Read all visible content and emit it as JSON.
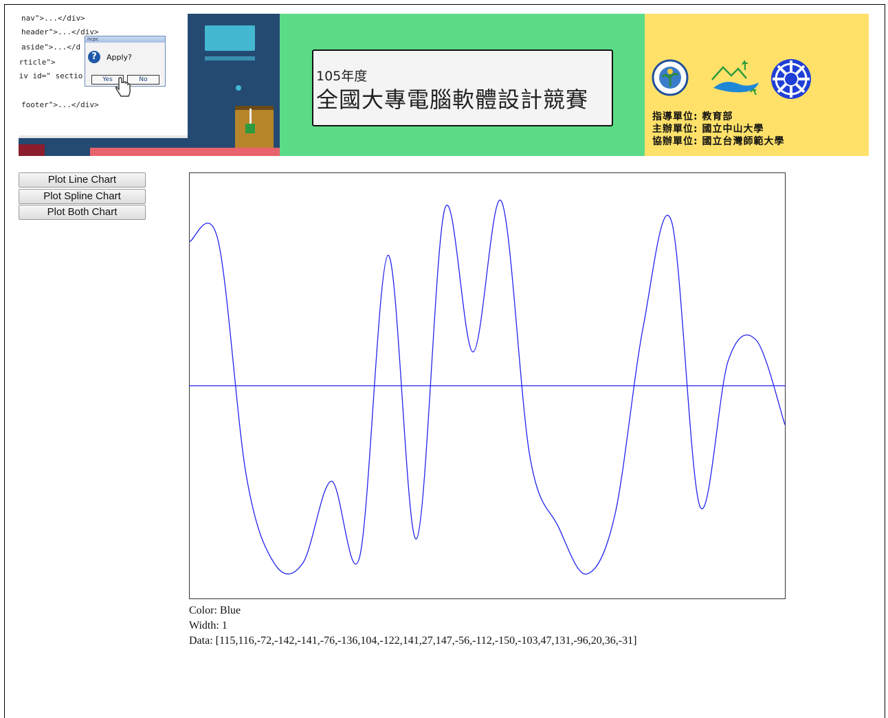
{
  "banner": {
    "code_lines": [
      "nav\">...</div>",
      "header\">...</div>",
      "aside\">...</d",
      "article\">",
      "div id=\" sectio",
      "footer\">...</div>"
    ],
    "dialog": {
      "title": "ncpc",
      "message": "Apply?",
      "yes_label": "Yes",
      "no_label": "No"
    },
    "title_year": "105年度",
    "title_main": "全國大專電腦軟體設計競賽",
    "credits": [
      "指導單位: 教育部",
      "主辦單位: 國立中山大學",
      "協辦單位: 國立台灣師範大學"
    ],
    "logos": [
      "ministry-of-education-logo",
      "nsysu-logo",
      "ntnu-logo"
    ],
    "colors": {
      "left_panel": "#244a72",
      "center_panel": "#5cdb86",
      "right_panel": "#ffe16a"
    }
  },
  "controls": {
    "plot_line_label": "Plot Line Chart",
    "plot_spline_label": "Plot Spline Chart",
    "plot_both_label": "Plot Both Chart"
  },
  "chart_data": {
    "type": "line",
    "style": "spline",
    "color": "#2222ee",
    "values": [
      115,
      116,
      -72,
      -142,
      -141,
      -76,
      -136,
      104,
      -122,
      141,
      27,
      147,
      -56,
      -112,
      -150,
      -103,
      47,
      131,
      -96,
      20,
      36,
      -31
    ],
    "ylim": [
      -170,
      170
    ],
    "baseline": 0,
    "grid": false
  },
  "info": {
    "color_line": "Color: Blue",
    "width_line": "Width: 1",
    "data_line": "Data: [115,116,-72,-142,-141,-76,-136,104,-122,141,27,147,-56,-112,-150,-103,47,131,-96,20,36,-31]"
  }
}
